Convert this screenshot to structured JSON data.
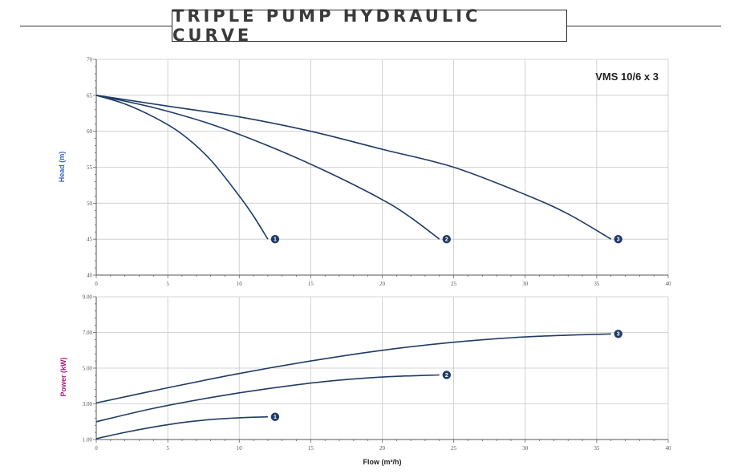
{
  "title": "TRIPLE PUMP HYDRAULIC CURVE",
  "colors": {
    "curve": "#1f3b66",
    "grid": "#c8c8c8",
    "axis": "#555555",
    "head_label": "#3a63c8",
    "power_label": "#b0177a"
  },
  "chart_data": [
    {
      "type": "line",
      "model_label": "VMS 10/6 x 3",
      "ylabel": "Head (m)",
      "xlabel": "",
      "xlim": [
        0,
        40
      ],
      "ylim": [
        40,
        70
      ],
      "x_ticks": [
        "0",
        "5",
        "10",
        "15",
        "20",
        "25",
        "30",
        "35",
        "40"
      ],
      "y_ticks": [
        "40",
        "45",
        "50",
        "55",
        "60",
        "65",
        "70"
      ],
      "grid": true,
      "series": [
        {
          "name": "1",
          "x": [
            0,
            2,
            4,
            6,
            8,
            10,
            11,
            12
          ],
          "y": [
            65,
            63.8,
            62,
            59.6,
            56,
            51,
            48.2,
            45
          ]
        },
        {
          "name": "2",
          "x": [
            0,
            4,
            8,
            12,
            16,
            20,
            22,
            24
          ],
          "y": [
            65,
            63.3,
            61,
            58,
            54.5,
            50.5,
            48,
            45
          ]
        },
        {
          "name": "3",
          "x": [
            0,
            5,
            10,
            15,
            20,
            25,
            30,
            33,
            36
          ],
          "y": [
            65,
            63.5,
            62,
            60,
            57.5,
            55,
            51.2,
            48.5,
            45
          ]
        }
      ]
    },
    {
      "type": "line",
      "ylabel": "Power (kW)",
      "xlabel": "Flow (m³/h)",
      "xlim": [
        0,
        40
      ],
      "ylim": [
        1,
        9
      ],
      "x_ticks": [
        "0",
        "5",
        "10",
        "15",
        "20",
        "25",
        "30",
        "35",
        "40"
      ],
      "y_ticks": [
        "1.00",
        "3.00",
        "5.00",
        "7.00",
        "9.00"
      ],
      "grid": true,
      "series": [
        {
          "name": "1",
          "x": [
            0,
            2,
            4,
            6,
            8,
            10,
            12
          ],
          "y": [
            1.05,
            1.4,
            1.7,
            1.95,
            2.12,
            2.22,
            2.27
          ]
        },
        {
          "name": "2",
          "x": [
            0,
            4,
            8,
            12,
            16,
            20,
            24
          ],
          "y": [
            2.0,
            2.75,
            3.35,
            3.85,
            4.25,
            4.5,
            4.62
          ]
        },
        {
          "name": "3",
          "x": [
            0,
            5,
            10,
            15,
            20,
            25,
            30,
            36
          ],
          "y": [
            3.05,
            3.9,
            4.7,
            5.4,
            6.0,
            6.45,
            6.75,
            6.92
          ]
        }
      ]
    }
  ]
}
